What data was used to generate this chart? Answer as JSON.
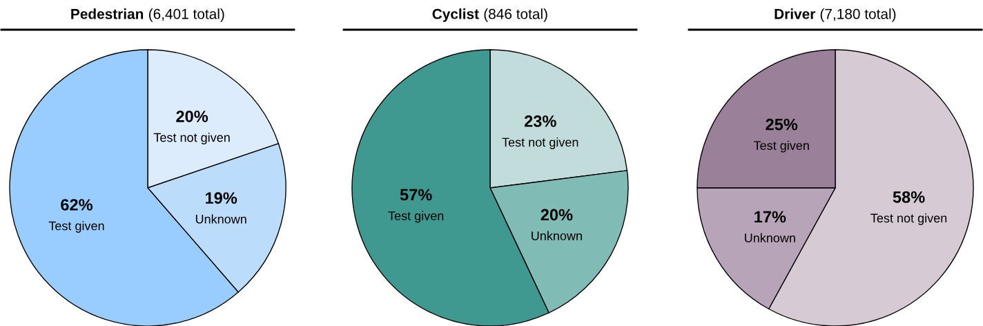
{
  "chart_data": [
    {
      "type": "pie",
      "title": "Pedestrian",
      "subtitle": "(6,401 total)",
      "categories": [
        "Test not given",
        "Unknown",
        "Test given"
      ],
      "values": [
        20,
        19,
        62
      ],
      "value_labels": [
        "20%",
        "19%",
        "62%"
      ],
      "colors": [
        "#dcecfc",
        "#bcdcfc",
        "#99ccff"
      ]
    },
    {
      "type": "pie",
      "title": "Cyclist",
      "subtitle": "(846 total)",
      "categories": [
        "Test not given",
        "Unknown",
        "Test given"
      ],
      "values": [
        23,
        20,
        57
      ],
      "value_labels": [
        "23%",
        "20%",
        "57%"
      ],
      "colors": [
        "#c2dcdc",
        "#80bbb6",
        "#409990"
      ]
    },
    {
      "type": "pie",
      "title": "Driver",
      "subtitle": "(7,180 total)",
      "categories": [
        "Test not given",
        "Unknown",
        "Test given"
      ],
      "values": [
        58,
        17,
        25
      ],
      "value_labels": [
        "58%",
        "17%",
        "25%"
      ],
      "colors": [
        "#d6cad4",
        "#b8a4b8",
        "#9a8098"
      ]
    }
  ]
}
